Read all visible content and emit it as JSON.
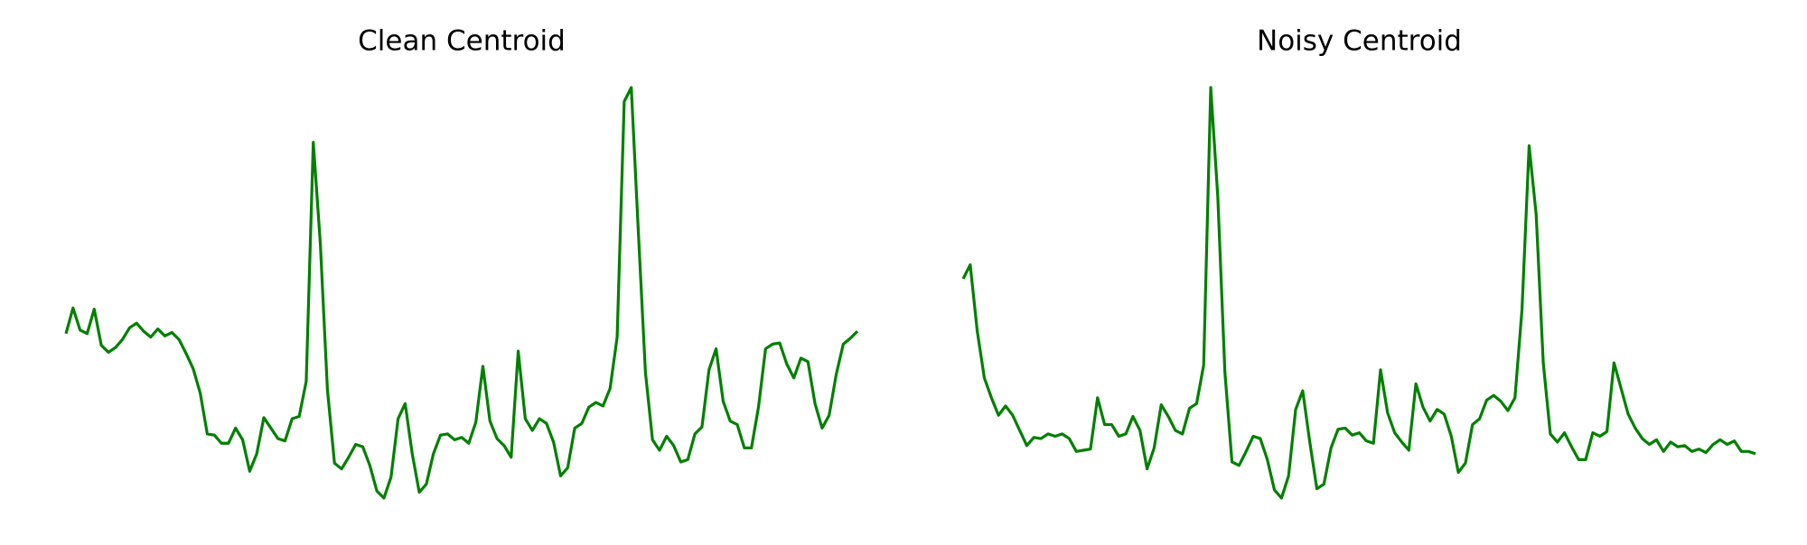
{
  "chart_data": [
    {
      "type": "line",
      "title": "Clean Centroid",
      "color": "#008000",
      "values": [
        153,
        175,
        156,
        153,
        174,
        143,
        137,
        141,
        148,
        158,
        162,
        155,
        150,
        157,
        151,
        154,
        148,
        136,
        123,
        102,
        67,
        66,
        59,
        59,
        72,
        62,
        35,
        50,
        81,
        72,
        63,
        61,
        80,
        82,
        112,
        317,
        230,
        105,
        42,
        37,
        47,
        58,
        56,
        40,
        18,
        12,
        30,
        80,
        93,
        50,
        17,
        24,
        50,
        66,
        67,
        62,
        64,
        59,
        77,
        125,
        78,
        63,
        57,
        47,
        138,
        80,
        70,
        80,
        76,
        60,
        31,
        38,
        72,
        76,
        90,
        94,
        91,
        106,
        150,
        352,
        364,
        240,
        120,
        62,
        53,
        65,
        57,
        43,
        45,
        67,
        73,
        122,
        140,
        95,
        78,
        75,
        55,
        55,
        90,
        140,
        144,
        145,
        127,
        115,
        132,
        129,
        93,
        72,
        83,
        118,
        144,
        149,
        155
      ]
    },
    {
      "type": "line",
      "title": "Noisy Centroid",
      "color": "#008000",
      "values": [
        200,
        212,
        155,
        115,
        98,
        83,
        91,
        83,
        70,
        57,
        64,
        63,
        67,
        65,
        67,
        63,
        52,
        53,
        54,
        98,
        75,
        75,
        65,
        67,
        82,
        70,
        37,
        55,
        92,
        82,
        70,
        67,
        89,
        93,
        126,
        364,
        270,
        120,
        43,
        40,
        52,
        65,
        63,
        45,
        19,
        12,
        31,
        88,
        104,
        60,
        20,
        24,
        55,
        71,
        72,
        66,
        68,
        61,
        59,
        122,
        85,
        68,
        60,
        53,
        110,
        90,
        78,
        88,
        84,
        65,
        34,
        42,
        75,
        80,
        96,
        100,
        95,
        87,
        98,
        174,
        314,
        255,
        128,
        67,
        60,
        68,
        56,
        45,
        45,
        68,
        65,
        69,
        128,
        106,
        84,
        72,
        63,
        58,
        62,
        52,
        60,
        56,
        57,
        52,
        54,
        51,
        58,
        62,
        58,
        61,
        52,
        52,
        50
      ]
    }
  ]
}
